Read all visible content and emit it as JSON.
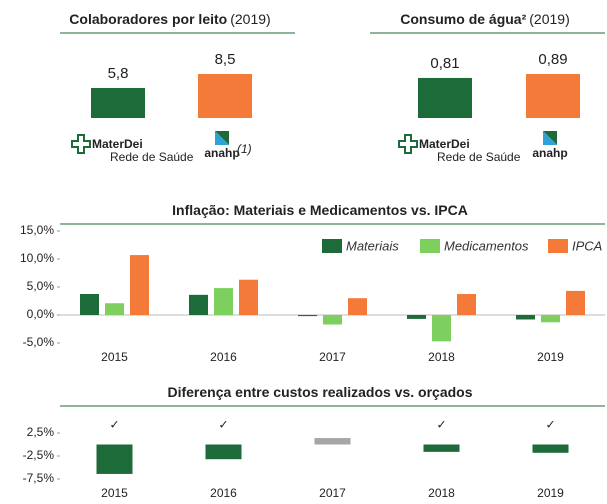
{
  "chart_data": [
    {
      "type": "pair",
      "title": "Colaboradores por leito",
      "title_suffix": "(2019)",
      "categories": [
        {
          "label": "MaterDei",
          "sublabel": "Rede de Saúde"
        },
        {
          "label": "anahp",
          "note": "(1)"
        }
      ],
      "values": [
        5.8,
        8.5
      ],
      "value_labels": [
        "5,8",
        "8,5"
      ],
      "colors": [
        "#1e6b3a",
        "#f47a3a"
      ]
    },
    {
      "type": "pair",
      "title": "Consumo de água²",
      "title_suffix": "(2019)",
      "categories": [
        {
          "label": "MaterDei",
          "sublabel": "Rede de Saúde"
        },
        {
          "label": "anahp"
        }
      ],
      "values": [
        0.81,
        0.89
      ],
      "value_labels": [
        "0,81",
        "0,89"
      ],
      "colors": [
        "#1e6b3a",
        "#f47a3a"
      ]
    },
    {
      "type": "grouped_bar",
      "title": "Inflação: Materiais e Medicamentos vs. IPCA",
      "categories": [
        "2015",
        "2016",
        "2017",
        "2018",
        "2019"
      ],
      "series": [
        {
          "name": "Materiais",
          "color": "#1e6b3a",
          "values": [
            3.75,
            3.6,
            -0.2,
            -0.7,
            -0.8
          ]
        },
        {
          "name": "Medicamentos",
          "color": "#7dcf5e",
          "values": [
            2.1,
            4.8,
            -1.7,
            -4.7,
            -1.3
          ]
        },
        {
          "name": "IPCA",
          "color": "#f47a3a",
          "values": [
            10.7,
            6.3,
            3.0,
            3.75,
            4.3
          ]
        }
      ],
      "ylim": [
        -5,
        15
      ],
      "yticks": [
        {
          "value": 15,
          "label": "15,0%"
        },
        {
          "value": 10,
          "label": "10,0%"
        },
        {
          "value": 5,
          "label": "5,0%"
        },
        {
          "value": 0,
          "label": "0,0%"
        },
        {
          "value": -5,
          "label": "-5,0%"
        }
      ],
      "legend": "top-right"
    },
    {
      "type": "bar",
      "title": "Diferença entre custos realizados vs. orçados",
      "categories": [
        "2015",
        "2016",
        "2017",
        "2018",
        "2019"
      ],
      "values": [
        -6.4,
        -3.2,
        1.4,
        -1.6,
        -1.8
      ],
      "colors": [
        "#1e6b3a",
        "#1e6b3a",
        "#a6a6a6",
        "#1e6b3a",
        "#1e6b3a"
      ],
      "markers": [
        "✓",
        "✓",
        null,
        "✓",
        "✓"
      ],
      "ylim": [
        -7.5,
        2.5
      ],
      "yticks": [
        {
          "value": 2.5,
          "label": "2,5%"
        },
        {
          "value": -2.5,
          "label": "-2,5%"
        },
        {
          "value": -7.5,
          "label": "-7,5%"
        }
      ]
    }
  ]
}
